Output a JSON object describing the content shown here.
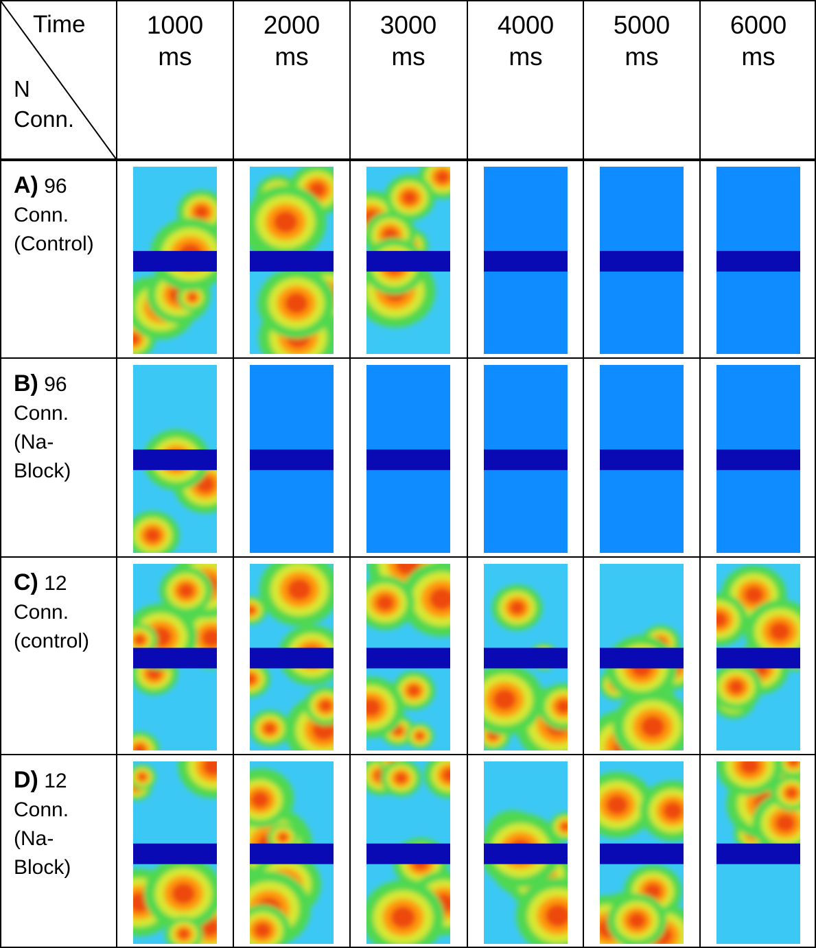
{
  "header": {
    "corner_top": "Time",
    "corner_bottom": "N\nConn.",
    "columns": [
      "1000\nms",
      "2000\nms",
      "3000\nms",
      "4000\nms",
      "5000\nms",
      "6000\nms"
    ]
  },
  "rows": [
    {
      "letter": "A)",
      "label": "96\nConn.\n(Control)"
    },
    {
      "letter": "B)",
      "label": "96\nConn.\n(Na-\nBlock)"
    },
    {
      "letter": "C)",
      "label": "12\nConn.\n(control)"
    },
    {
      "letter": "D)",
      "label": "12\nConn.\n(Na-\nBlock)"
    }
  ]
}
